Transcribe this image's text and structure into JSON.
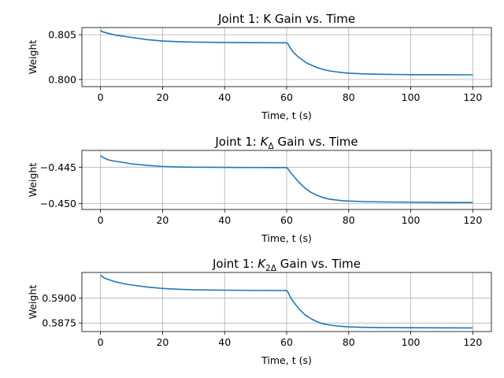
{
  "chart_data": [
    {
      "type": "line",
      "title_parts": [
        {
          "t": "Joint 1: K Gain vs. Time",
          "sub": false
        }
      ],
      "xlabel": "Time, t (s)",
      "ylabel": "Weight",
      "xlim": [
        -6,
        126
      ],
      "ylim": [
        0.7992,
        0.8058
      ],
      "xticks": [
        0,
        20,
        40,
        60,
        80,
        100,
        120
      ],
      "yticks": [
        0.8,
        0.805
      ],
      "ytick_labels": [
        "0.800",
        "0.805"
      ],
      "grid": true,
      "series": [
        {
          "color": "#1f77b4",
          "x": [
            0,
            0.5,
            1,
            2,
            3,
            5,
            8,
            10,
            15,
            20,
            25,
            30,
            40,
            50,
            58,
            60,
            60.5,
            61,
            62,
            63,
            64,
            65,
            66,
            67,
            68,
            70,
            72,
            74,
            76,
            78,
            80,
            85,
            90,
            100,
            110,
            120
          ],
          "y": [
            0.8055,
            0.80535,
            0.8053,
            0.8052,
            0.8051,
            0.80495,
            0.8048,
            0.8047,
            0.80445,
            0.8043,
            0.80422,
            0.80418,
            0.80413,
            0.80411,
            0.8041,
            0.8041,
            0.80395,
            0.8036,
            0.8031,
            0.80275,
            0.80245,
            0.8022,
            0.80195,
            0.80175,
            0.8016,
            0.8013,
            0.8011,
            0.80095,
            0.80085,
            0.80077,
            0.8007,
            0.80062,
            0.80058,
            0.80054,
            0.80053,
            0.80052
          ]
        }
      ]
    },
    {
      "type": "line",
      "title_parts": [
        {
          "t": "Joint 1: ",
          "sub": false
        },
        {
          "t": "K",
          "sub": false,
          "italic": true
        },
        {
          "t": "Δ",
          "sub": true
        },
        {
          "t": " Gain vs. Time",
          "sub": false
        }
      ],
      "xlabel": "Time, t (s)",
      "ylabel": "Weight",
      "xlim": [
        -6,
        126
      ],
      "ylim": [
        -0.4508,
        -0.4427
      ],
      "xticks": [
        0,
        20,
        40,
        60,
        80,
        100,
        120
      ],
      "yticks": [
        -0.445,
        -0.45
      ],
      "ytick_labels": [
        "−0.445",
        "−0.450"
      ],
      "grid": true,
      "series": [
        {
          "color": "#1f77b4",
          "x": [
            0,
            0.5,
            1,
            2,
            3,
            5,
            8,
            10,
            15,
            20,
            25,
            30,
            40,
            50,
            58,
            60,
            60.5,
            61,
            62,
            63,
            64,
            65,
            66,
            67,
            68,
            70,
            72,
            74,
            76,
            78,
            80,
            85,
            90,
            100,
            110,
            120
          ],
          "y": [
            -0.4434,
            -0.4436,
            -0.4437,
            -0.4439,
            -0.44405,
            -0.4442,
            -0.4444,
            -0.44455,
            -0.44475,
            -0.4449,
            -0.44497,
            -0.445,
            -0.44503,
            -0.44505,
            -0.44506,
            -0.44506,
            -0.44525,
            -0.4456,
            -0.4461,
            -0.4466,
            -0.4471,
            -0.4475,
            -0.4479,
            -0.4482,
            -0.4485,
            -0.4489,
            -0.4492,
            -0.4494,
            -0.4495,
            -0.4496,
            -0.44965,
            -0.44972,
            -0.44976,
            -0.4498,
            -0.44983,
            -0.44985
          ]
        }
      ]
    },
    {
      "type": "line",
      "title_parts": [
        {
          "t": "Joint 1: ",
          "sub": false
        },
        {
          "t": "K",
          "sub": false,
          "italic": true
        },
        {
          "t": "2Δ",
          "sub": true
        },
        {
          "t": " Gain vs. Time",
          "sub": false
        }
      ],
      "xlabel": "Time, t (s)",
      "ylabel": "Weight",
      "xlim": [
        -6,
        126
      ],
      "ylim": [
        0.58665,
        0.59255
      ],
      "xticks": [
        0,
        20,
        40,
        60,
        80,
        100,
        120
      ],
      "yticks": [
        0.5875,
        0.59
      ],
      "ytick_labels": [
        "0.5875",
        "0.5900"
      ],
      "grid": true,
      "series": [
        {
          "color": "#1f77b4",
          "x": [
            0,
            0.5,
            1,
            2,
            3,
            5,
            8,
            10,
            15,
            20,
            25,
            30,
            40,
            50,
            58,
            60,
            60.5,
            61,
            62,
            63,
            64,
            65,
            66,
            67,
            68,
            70,
            72,
            74,
            76,
            78,
            80,
            85,
            90,
            100,
            110,
            120
          ],
          "y": [
            0.5923,
            0.59215,
            0.59205,
            0.5919,
            0.5918,
            0.5916,
            0.5914,
            0.5913,
            0.5911,
            0.59095,
            0.59087,
            0.59082,
            0.59078,
            0.59076,
            0.59075,
            0.59075,
            0.59055,
            0.5902,
            0.5897,
            0.5893,
            0.5889,
            0.5886,
            0.5883,
            0.5881,
            0.5879,
            0.5876,
            0.5874,
            0.5873,
            0.58722,
            0.58716,
            0.58712,
            0.58707,
            0.58705,
            0.58703,
            0.58702,
            0.58701
          ]
        }
      ]
    }
  ]
}
